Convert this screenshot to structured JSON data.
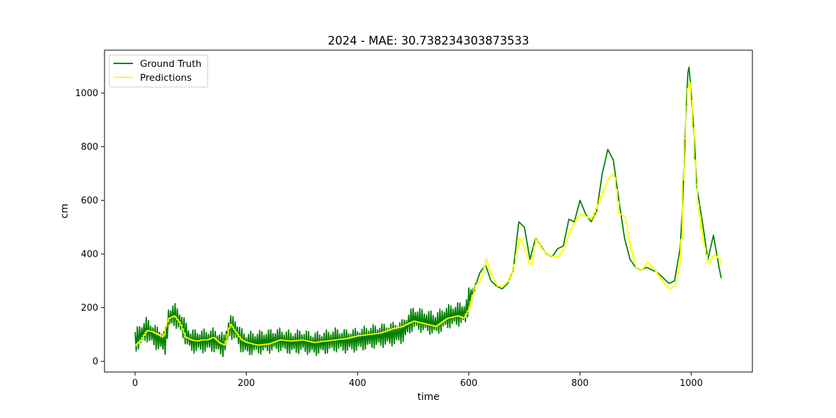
{
  "chart_data": {
    "type": "line",
    "title": "2024 - MAE: 30.738234303873533",
    "xlabel": "time",
    "ylabel": "cm",
    "xlim": [
      -55,
      1110
    ],
    "ylim": [
      -40,
      1160
    ],
    "xticks": [
      0,
      200,
      400,
      600,
      800,
      1000
    ],
    "yticks": [
      0,
      200,
      400,
      600,
      800,
      1000
    ],
    "grid": false,
    "legend_position": "upper-left",
    "series": [
      {
        "name": "Ground Truth",
        "color": "#008000",
        "oscillation": {
          "period": 4,
          "amplitude_before_x": 600,
          "amplitude": 45
        },
        "x": [
          0,
          20,
          40,
          55,
          60,
          70,
          80,
          90,
          100,
          120,
          140,
          160,
          170,
          180,
          190,
          200,
          220,
          240,
          260,
          280,
          300,
          320,
          340,
          360,
          380,
          400,
          420,
          440,
          460,
          480,
          500,
          520,
          540,
          560,
          580,
          595,
          600,
          610,
          620,
          630,
          640,
          650,
          660,
          670,
          680,
          690,
          700,
          710,
          720,
          730,
          740,
          750,
          760,
          770,
          780,
          790,
          800,
          810,
          820,
          830,
          840,
          850,
          860,
          870,
          880,
          890,
          900,
          910,
          920,
          930,
          940,
          950,
          960,
          970,
          980,
          985,
          990,
          995,
          1000,
          1005,
          1010,
          1020,
          1030,
          1040,
          1050,
          1055
        ],
        "y": [
          75,
          120,
          85,
          70,
          160,
          175,
          150,
          110,
          75,
          75,
          80,
          60,
          130,
          120,
          80,
          65,
          70,
          75,
          80,
          70,
          75,
          65,
          70,
          80,
          75,
          80,
          90,
          95,
          100,
          110,
          160,
          150,
          140,
          165,
          175,
          180,
          230,
          270,
          330,
          360,
          300,
          280,
          270,
          290,
          340,
          520,
          500,
          380,
          460,
          430,
          400,
          390,
          420,
          430,
          530,
          520,
          600,
          550,
          520,
          560,
          700,
          790,
          750,
          600,
          460,
          380,
          350,
          340,
          350,
          340,
          330,
          310,
          290,
          300,
          420,
          600,
          900,
          1120,
          1000,
          850,
          650,
          520,
          380,
          470,
          350,
          300
        ]
      },
      {
        "name": "Predictions",
        "color": "#FFFF00",
        "x": [
          0,
          10,
          20,
          30,
          40,
          50,
          55,
          60,
          70,
          80,
          90,
          100,
          110,
          120,
          130,
          140,
          150,
          160,
          170,
          180,
          190,
          200,
          220,
          240,
          260,
          280,
          300,
          320,
          340,
          360,
          380,
          400,
          420,
          440,
          460,
          480,
          500,
          520,
          540,
          560,
          580,
          590,
          600,
          610,
          620,
          630,
          640,
          650,
          660,
          670,
          680,
          690,
          700,
          710,
          720,
          730,
          740,
          750,
          760,
          770,
          780,
          790,
          800,
          810,
          820,
          830,
          840,
          850,
          860,
          870,
          880,
          890,
          900,
          910,
          920,
          930,
          940,
          950,
          960,
          970,
          980,
          985,
          990,
          995,
          1000,
          1005,
          1010,
          1020,
          1030,
          1040,
          1050,
          1055
        ],
        "y": [
          60,
          80,
          115,
          110,
          100,
          90,
          140,
          160,
          170,
          140,
          90,
          80,
          75,
          80,
          80,
          90,
          70,
          60,
          140,
          110,
          80,
          70,
          60,
          65,
          80,
          75,
          80,
          70,
          75,
          80,
          85,
          95,
          100,
          105,
          120,
          130,
          150,
          140,
          130,
          160,
          170,
          160,
          200,
          280,
          300,
          380,
          320,
          280,
          280,
          300,
          350,
          460,
          420,
          350,
          460,
          420,
          400,
          390,
          390,
          420,
          480,
          520,
          550,
          540,
          530,
          580,
          630,
          680,
          700,
          550,
          540,
          420,
          350,
          340,
          370,
          350,
          320,
          290,
          270,
          280,
          380,
          750,
          950,
          1060,
          950,
          750,
          600,
          450,
          360,
          400,
          380,
          350
        ]
      }
    ]
  }
}
